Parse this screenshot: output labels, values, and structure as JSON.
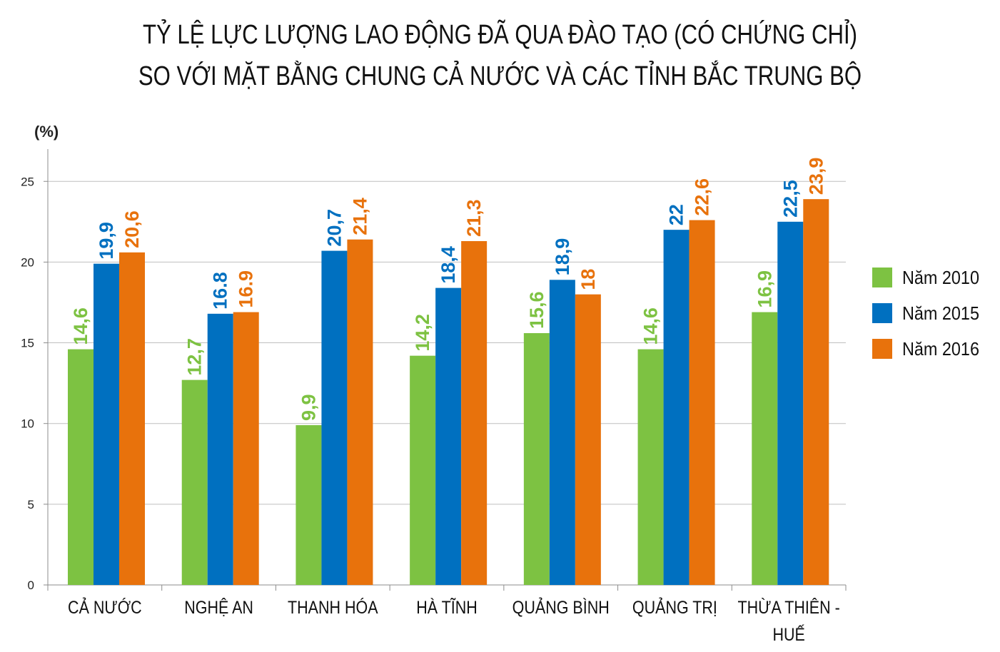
{
  "chart_data": {
    "type": "bar",
    "title_lines": [
      "TỶ LỆ LỰC LƯỢNG LAO ĐỘNG ĐÃ QUA ĐÀO TẠO (CÓ CHỨNG CHỈ)",
      "SO VỚI MẶT BẰNG CHUNG CẢ NƯỚC VÀ CÁC TỈNH BẮC TRUNG BỘ"
    ],
    "ylabel": "(%)",
    "ylim": [
      0,
      27
    ],
    "yticks": [
      0,
      5,
      10,
      15,
      20,
      25
    ],
    "grid": true,
    "legend_position": "right",
    "categories": [
      "CẢ NƯỚC",
      "NGHỆ AN",
      "THANH HÓA",
      "HÀ TĨNH",
      "QUẢNG BÌNH",
      "QUẢNG TRỊ",
      "THỪA THIÊN - HUẾ"
    ],
    "category_lines": [
      [
        "CẢ NƯỚC"
      ],
      [
        "NGHỆ AN"
      ],
      [
        "THANH HÓA"
      ],
      [
        "HÀ TĨNH"
      ],
      [
        "QUẢNG BÌNH"
      ],
      [
        "QUẢNG TRỊ"
      ],
      [
        "THỪA THIÊN -",
        "HUẾ"
      ]
    ],
    "series": [
      {
        "name": "Năm 2010",
        "color": "#7dc242",
        "values": [
          14.6,
          12.7,
          9.9,
          14.2,
          15.6,
          14.6,
          16.9
        ],
        "labels": [
          "14,6",
          "12,7",
          "9,9",
          "14,2",
          "15,6",
          "14,6",
          "16,9"
        ]
      },
      {
        "name": "Năm 2015",
        "color": "#0070c0",
        "values": [
          19.9,
          16.8,
          20.7,
          18.4,
          18.9,
          22,
          22.5
        ],
        "labels": [
          "19,9",
          "16.8",
          "20,7",
          "18,4",
          "18,9",
          "22",
          "22,5"
        ]
      },
      {
        "name": "Năm 2016",
        "color": "#e8720c",
        "values": [
          20.6,
          16.9,
          21.4,
          21.3,
          18,
          22.6,
          23.9
        ],
        "labels": [
          "20,6",
          "16.9",
          "21,4",
          "21,3",
          "18",
          "22,6",
          "23,9"
        ]
      }
    ]
  }
}
